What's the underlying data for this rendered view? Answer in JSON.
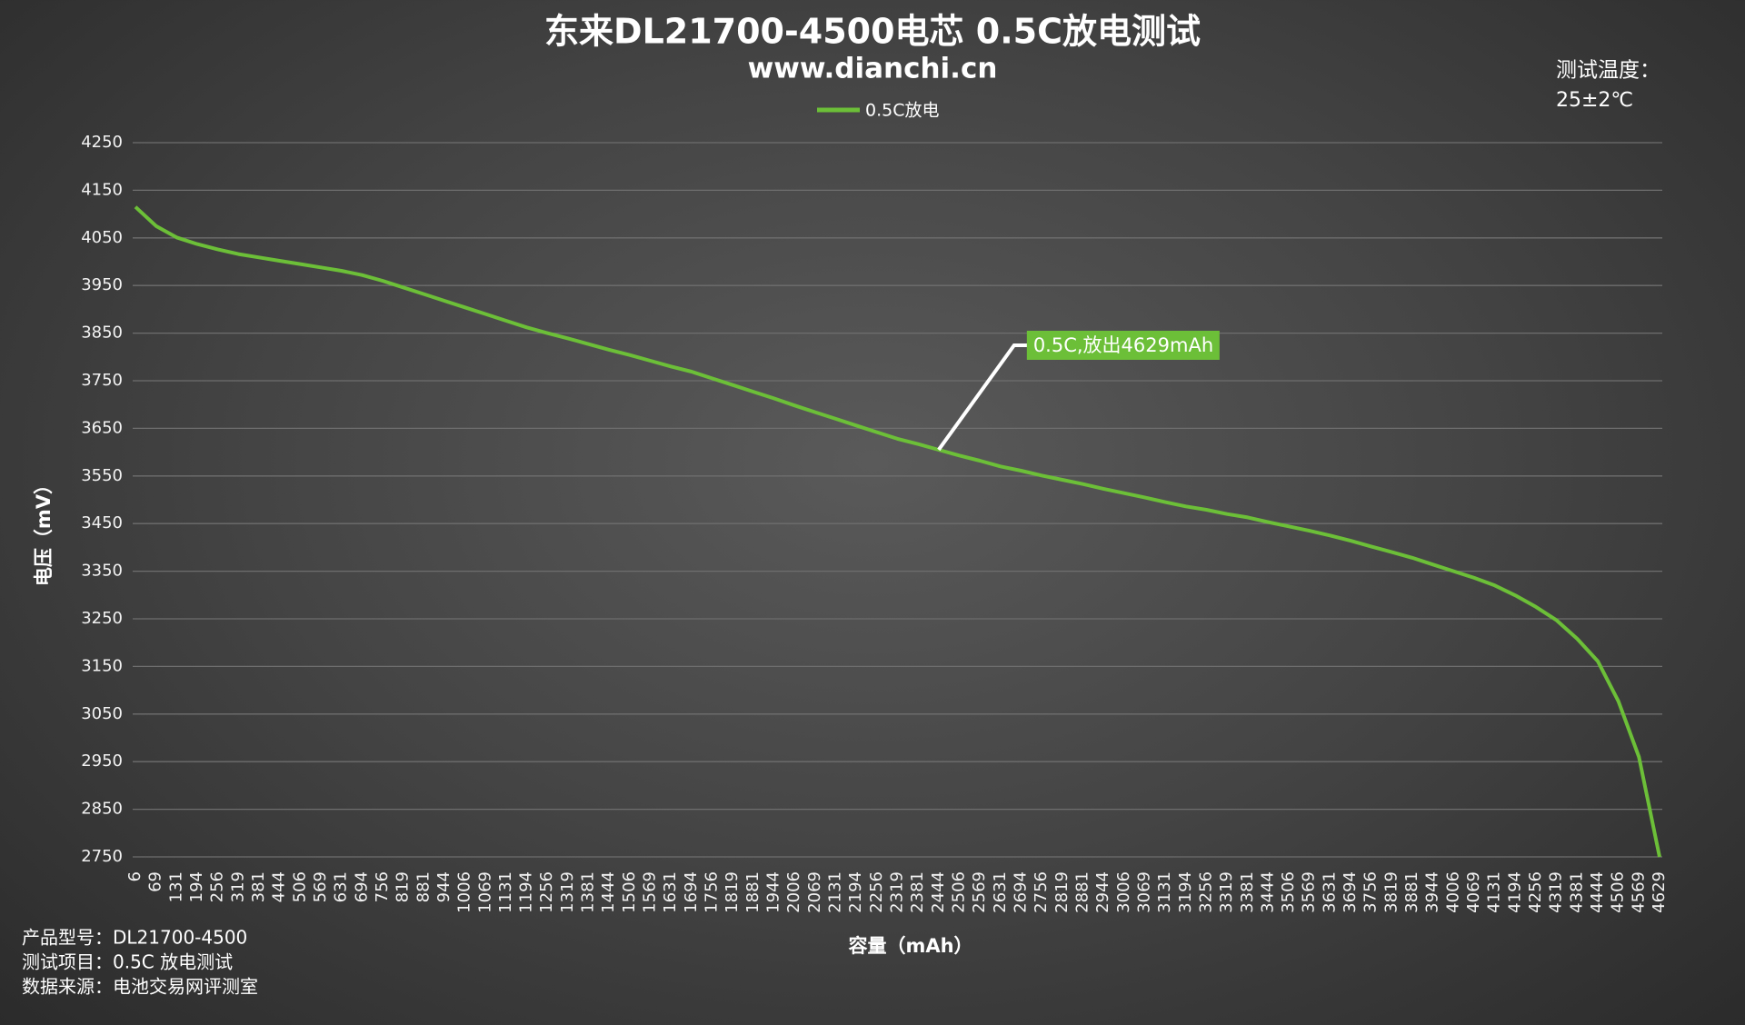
{
  "chart_data": {
    "type": "line",
    "title": "东来DL21700-4500电芯 0.5C放电测试",
    "subtitle": "www.dianchi.cn",
    "note": [
      "测试温度：",
      "25±2℃"
    ],
    "x_label": "容量（mAh）",
    "y_label": "电压（mV）",
    "categories": [
      "6",
      "69",
      "131",
      "194",
      "256",
      "319",
      "381",
      "444",
      "506",
      "569",
      "631",
      "694",
      "756",
      "819",
      "881",
      "944",
      "1006",
      "1069",
      "1131",
      "1194",
      "1256",
      "1319",
      "1381",
      "1444",
      "1506",
      "1569",
      "1631",
      "1694",
      "1756",
      "1819",
      "1881",
      "1944",
      "2006",
      "2069",
      "2131",
      "2194",
      "2256",
      "2319",
      "2381",
      "2444",
      "2506",
      "2569",
      "2631",
      "2694",
      "2756",
      "2819",
      "2881",
      "2944",
      "3006",
      "3069",
      "3131",
      "3194",
      "3256",
      "3319",
      "3381",
      "3444",
      "3506",
      "3569",
      "3631",
      "3694",
      "3756",
      "3819",
      "3881",
      "3944",
      "4006",
      "4069",
      "4131",
      "4194",
      "4256",
      "4319",
      "4381",
      "4444",
      "4506",
      "4569",
      "4629"
    ],
    "series": [
      {
        "name": "0.5C放电",
        "color": "#6cbf38",
        "values": [
          4115,
          4075,
          4051,
          4037,
          4026,
          4016,
          4009,
          4002,
          3995,
          3988,
          3981,
          3972,
          3960,
          3946,
          3932,
          3918,
          3904,
          3890,
          3876,
          3862,
          3850,
          3839,
          3827,
          3815,
          3804,
          3792,
          3780,
          3769,
          3755,
          3741,
          3727,
          3713,
          3698,
          3684,
          3670,
          3656,
          3642,
          3628,
          3617,
          3605,
          3593,
          3582,
          3570,
          3561,
          3551,
          3542,
          3533,
          3523,
          3514,
          3505,
          3495,
          3486,
          3479,
          3470,
          3463,
          3453,
          3444,
          3435,
          3425,
          3414,
          3402,
          3390,
          3378,
          3364,
          3350,
          3336,
          3320,
          3299,
          3275,
          3247,
          3208,
          3161,
          3077,
          2960,
          2750
        ]
      }
    ],
    "annotation": "0.5C,放出4629mAh",
    "ylim": [
      2750,
      4250
    ],
    "yticks": [
      2750,
      2850,
      2950,
      3050,
      3150,
      3250,
      3350,
      3450,
      3550,
      3650,
      3750,
      3850,
      3950,
      4050,
      4150,
      4250
    ],
    "grid": true,
    "legend": "top",
    "footer": [
      "产品型号：DL21700-4500",
      "测试项目：0.5C 放电测试",
      "数据来源：电池交易网评测室"
    ]
  }
}
